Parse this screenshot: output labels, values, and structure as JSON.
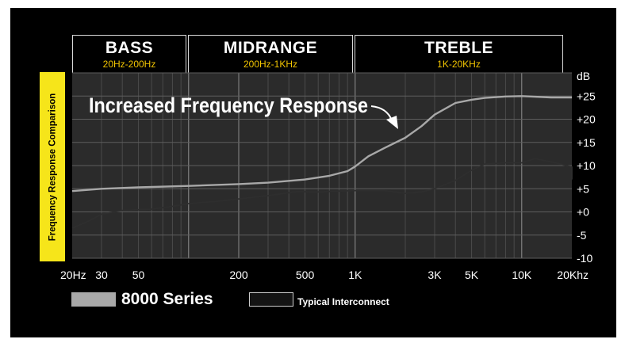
{
  "bands": [
    {
      "title": "BASS",
      "range": "20Hz-200Hz"
    },
    {
      "title": "MIDRANGE",
      "range": "200Hz-1KHz"
    },
    {
      "title": "TREBLE",
      "range": "1K-20KHz"
    }
  ],
  "side_label": "Frequency Response Comparison",
  "annotation": "Increased Frequency Response",
  "chart_data": {
    "type": "line",
    "ylabel": "dB",
    "x_scale": "log",
    "xlim": [
      20,
      20000
    ],
    "ylim": [
      -10,
      30
    ],
    "grid": true,
    "x_ticks": [
      {
        "value": 20,
        "label": "20Hz"
      },
      {
        "value": 30,
        "label": "30"
      },
      {
        "value": 50,
        "label": "50"
      },
      {
        "value": 200,
        "label": "200"
      },
      {
        "value": 500,
        "label": "500"
      },
      {
        "value": 1000,
        "label": "1K"
      },
      {
        "value": 3000,
        "label": "3K"
      },
      {
        "value": 5000,
        "label": "5K"
      },
      {
        "value": 10000,
        "label": "10K"
      },
      {
        "value": 20000,
        "label": "20Khz"
      }
    ],
    "y_ticks": [
      {
        "value": 25,
        "label": "+25"
      },
      {
        "value": 20,
        "label": "+20"
      },
      {
        "value": 15,
        "label": "+15"
      },
      {
        "value": 10,
        "label": "+10"
      },
      {
        "value": 5,
        "label": "+5"
      },
      {
        "value": 0,
        "label": "+0"
      },
      {
        "value": -5,
        "label": "-5"
      },
      {
        "value": -10,
        "label": "-10"
      }
    ],
    "series": [
      {
        "name": "8000 Series",
        "color": "#a8a8a8",
        "points": [
          [
            20,
            4.5
          ],
          [
            30,
            5.0
          ],
          [
            50,
            5.3
          ],
          [
            100,
            5.6
          ],
          [
            200,
            6.0
          ],
          [
            300,
            6.3
          ],
          [
            500,
            7.0
          ],
          [
            700,
            7.8
          ],
          [
            900,
            8.8
          ],
          [
            1000,
            9.8
          ],
          [
            1200,
            12.0
          ],
          [
            1500,
            13.8
          ],
          [
            2000,
            16.0
          ],
          [
            2500,
            18.5
          ],
          [
            3000,
            21.0
          ],
          [
            4000,
            23.5
          ],
          [
            5000,
            24.2
          ],
          [
            6000,
            24.6
          ],
          [
            8000,
            24.9
          ],
          [
            10000,
            25.0
          ],
          [
            15000,
            24.7
          ],
          [
            20000,
            24.7
          ]
        ]
      },
      {
        "name": "Typical Interconnect",
        "color": "#2e2e2e",
        "points": [
          [
            20,
            -3.5
          ],
          [
            25,
            -2.0
          ],
          [
            30,
            -0.5
          ],
          [
            40,
            0.3
          ],
          [
            60,
            0.6
          ],
          [
            80,
            1.2
          ],
          [
            100,
            1.8
          ],
          [
            150,
            2.3
          ],
          [
            200,
            2.8
          ],
          [
            300,
            3.5
          ],
          [
            450,
            4.4
          ],
          [
            600,
            4.3
          ],
          [
            800,
            4.5
          ],
          [
            1000,
            4.6
          ],
          [
            1500,
            4.6
          ],
          [
            2000,
            4.0
          ],
          [
            2500,
            4.3
          ],
          [
            3000,
            5.0
          ],
          [
            4000,
            6.8
          ],
          [
            5000,
            9.0
          ],
          [
            6000,
            10.3
          ],
          [
            8000,
            10.6
          ],
          [
            10000,
            10.6
          ],
          [
            12000,
            11.5
          ],
          [
            15000,
            10.8
          ],
          [
            20000,
            9.7
          ],
          [
            22000,
            7.0
          ]
        ]
      }
    ]
  }
}
